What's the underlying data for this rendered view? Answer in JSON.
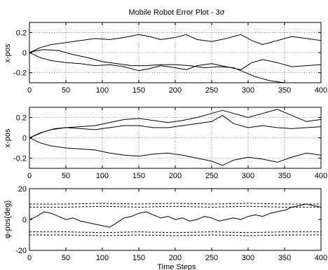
{
  "chart_data": [
    {
      "type": "line",
      "title": "Mobile Robot Error Plot - 3σ",
      "ylabel": "x-pos",
      "xlabel": "",
      "xlim": [
        0,
        400
      ],
      "ylim": [
        -0.3,
        0.3
      ],
      "xticks": [
        "0",
        "50",
        "100",
        "150",
        "200",
        "250",
        "300",
        "350",
        "400"
      ],
      "yticks": [
        {
          "v": -0.2,
          "label": "-0.2"
        },
        {
          "v": 0,
          "label": "0"
        },
        {
          "v": 0.2,
          "label": "0.2"
        }
      ],
      "grid": true,
      "series": [
        {
          "style": "solid",
          "x": [
            0,
            15,
            30,
            50,
            70,
            90,
            110,
            130,
            150,
            165,
            180,
            200,
            215,
            230,
            250,
            270,
            290,
            305,
            320,
            340,
            360,
            380,
            400
          ],
          "y": [
            0,
            0.05,
            0.08,
            0.1,
            0.12,
            0.14,
            0.13,
            0.15,
            0.18,
            0.16,
            0.13,
            0.15,
            0.18,
            0.13,
            0.11,
            0.14,
            0.18,
            0.12,
            0.08,
            0.12,
            0.16,
            0.14,
            0.12
          ]
        },
        {
          "style": "solid",
          "x": [
            0,
            15,
            30,
            50,
            70,
            90,
            110,
            130,
            150,
            165,
            180,
            200,
            215,
            230,
            250,
            270,
            290,
            305,
            320,
            340,
            360,
            380,
            400
          ],
          "y": [
            0,
            -0.05,
            -0.08,
            -0.1,
            -0.11,
            -0.13,
            -0.12,
            -0.14,
            -0.18,
            -0.16,
            -0.13,
            -0.15,
            -0.17,
            -0.13,
            -0.11,
            -0.14,
            -0.17,
            -0.1,
            -0.07,
            -0.1,
            -0.14,
            -0.13,
            -0.12
          ]
        },
        {
          "style": "solid",
          "x": [
            0,
            10,
            20,
            40,
            60,
            80,
            100,
            120,
            140,
            160,
            180,
            200,
            220,
            240,
            260,
            280,
            290,
            300,
            310,
            330,
            350,
            370,
            390,
            400
          ],
          "y": [
            0,
            0.02,
            0.03,
            0.02,
            -0.02,
            -0.05,
            -0.09,
            -0.11,
            -0.13,
            -0.13,
            -0.12,
            -0.12,
            -0.13,
            -0.15,
            -0.14,
            -0.15,
            -0.18,
            -0.21,
            -0.24,
            -0.28,
            -0.3,
            -0.32,
            -0.34,
            -0.35
          ]
        }
      ]
    },
    {
      "type": "line",
      "title": "",
      "ylabel": "x-pos",
      "xlabel": "",
      "xlim": [
        0,
        400
      ],
      "ylim": [
        -0.3,
        0.3
      ],
      "xticks": [
        "0",
        "50",
        "100",
        "150",
        "200",
        "250",
        "300",
        "350",
        "400"
      ],
      "yticks": [
        {
          "v": -0.2,
          "label": "-0.2"
        },
        {
          "v": 0,
          "label": "0"
        },
        {
          "v": 0.2,
          "label": "0.2"
        }
      ],
      "grid": true,
      "series": [
        {
          "style": "solid",
          "x": [
            0,
            15,
            30,
            50,
            70,
            90,
            110,
            130,
            150,
            170,
            190,
            210,
            230,
            250,
            265,
            280,
            300,
            320,
            340,
            360,
            380,
            400
          ],
          "y": [
            0,
            0.05,
            0.08,
            0.1,
            0.11,
            0.12,
            0.15,
            0.18,
            0.19,
            0.17,
            0.15,
            0.17,
            0.2,
            0.24,
            0.27,
            0.24,
            0.2,
            0.24,
            0.28,
            0.22,
            0.16,
            0.18
          ]
        },
        {
          "style": "solid",
          "x": [
            0,
            15,
            30,
            50,
            70,
            90,
            110,
            130,
            150,
            170,
            190,
            210,
            230,
            250,
            265,
            280,
            300,
            320,
            340,
            360,
            380,
            400
          ],
          "y": [
            0,
            -0.05,
            -0.08,
            -0.1,
            -0.11,
            -0.12,
            -0.15,
            -0.17,
            -0.18,
            -0.16,
            -0.15,
            -0.17,
            -0.2,
            -0.23,
            -0.27,
            -0.22,
            -0.19,
            -0.21,
            -0.24,
            -0.19,
            -0.15,
            -0.17
          ]
        },
        {
          "style": "solid",
          "x": [
            0,
            10,
            20,
            35,
            50,
            70,
            90,
            110,
            130,
            150,
            170,
            190,
            210,
            230,
            250,
            265,
            280,
            300,
            320,
            340,
            360,
            380,
            400
          ],
          "y": [
            0,
            0.03,
            0.06,
            0.09,
            0.1,
            0.09,
            0.08,
            0.1,
            0.12,
            0.12,
            0.1,
            0.1,
            0.12,
            0.14,
            0.16,
            0.22,
            0.14,
            0.1,
            0.12,
            0.1,
            0.09,
            0.1,
            0.11
          ]
        }
      ]
    },
    {
      "type": "line",
      "title": "",
      "ylabel": "φ-pos(deg)",
      "xlabel": "Time Steps",
      "xlim": [
        0,
        400
      ],
      "ylim": [
        -20,
        20
      ],
      "xticks": [
        "0",
        "50",
        "100",
        "150",
        "200",
        "250",
        "300",
        "350",
        "400"
      ],
      "yticks": [
        {
          "v": -20,
          "label": "-20"
        },
        {
          "v": 0,
          "label": "0"
        },
        {
          "v": 20,
          "label": "20"
        }
      ],
      "grid": false,
      "series": [
        {
          "style": "dashed",
          "x": [
            0,
            50,
            100,
            150,
            200,
            250,
            300,
            350,
            400
          ],
          "y": [
            10,
            10,
            10.5,
            10,
            10.5,
            10,
            10.5,
            10,
            10
          ]
        },
        {
          "style": "dashed",
          "x": [
            0,
            50,
            100,
            150,
            200,
            250,
            300,
            350,
            400
          ],
          "y": [
            8,
            8,
            8.5,
            8,
            8.5,
            8,
            8.5,
            8,
            8
          ]
        },
        {
          "style": "dashed",
          "x": [
            0,
            50,
            100,
            150,
            200,
            250,
            300,
            350,
            400
          ],
          "y": [
            -8,
            -8,
            -8.5,
            -8,
            -8.5,
            -8,
            -8.5,
            -8,
            -8
          ]
        },
        {
          "style": "dashed",
          "x": [
            0,
            50,
            100,
            150,
            200,
            250,
            300,
            350,
            400
          ],
          "y": [
            -10,
            -10,
            -10.5,
            -10,
            -10.5,
            -10,
            -10.5,
            -10,
            -10
          ]
        },
        {
          "style": "solid",
          "x": [
            0,
            10,
            20,
            30,
            40,
            50,
            60,
            70,
            80,
            90,
            100,
            110,
            120,
            130,
            140,
            150,
            160,
            170,
            180,
            190,
            200,
            210,
            220,
            230,
            240,
            250,
            260,
            270,
            280,
            290,
            300,
            310,
            320,
            330,
            340,
            350,
            360,
            370,
            380,
            390,
            400
          ],
          "y": [
            0,
            2,
            5,
            4,
            2,
            0,
            1,
            -1,
            -2,
            -3,
            -4,
            -5,
            -2,
            1,
            2,
            4,
            5,
            3,
            1,
            2,
            0,
            1,
            -1,
            0,
            2,
            1,
            -1,
            0,
            1,
            0,
            2,
            3,
            2,
            4,
            5,
            6,
            8,
            9,
            10,
            9,
            8
          ]
        }
      ]
    }
  ]
}
